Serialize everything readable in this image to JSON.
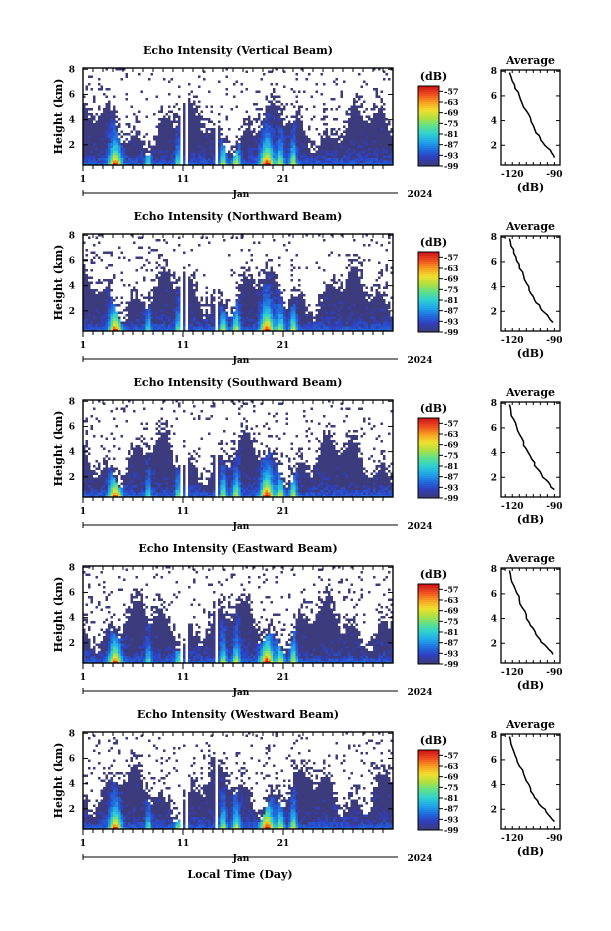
{
  "colors": {
    "background": "#ffffff",
    "low": "#3b3b7e",
    "colormap": [
      "#3b3b7e",
      "#2f3fbf",
      "#1f6fe0",
      "#20a8e8",
      "#2fd0d0",
      "#5ee08a",
      "#b0e040",
      "#f0e030",
      "#f7a020",
      "#ee5020",
      "#d01818"
    ]
  },
  "shared": {
    "ylabel": "Height (km)",
    "x_ticks": [
      "1",
      "11",
      "21"
    ],
    "month_label": "Jan",
    "year_label": "2024",
    "colorbar_unit": "(dB)",
    "colorbar_ticks": [
      "-57",
      "-63",
      "-69",
      "-75",
      "-81",
      "-87",
      "-93",
      "-99"
    ],
    "avg_title": "Average",
    "avg_xlabel": "(dB)",
    "avg_xticks": [
      "-120",
      "-90"
    ],
    "y_ticks": [
      "2",
      "4",
      "6",
      "8"
    ],
    "xlabel_bottom": "Local Time (Day)"
  },
  "chart_data": [
    {
      "type": "heatmap",
      "title": "Echo Intensity (Vertical Beam)",
      "x_range": [
        1,
        32
      ],
      "y_range": [
        0.4,
        8.1
      ],
      "z_range": [
        -99,
        -54
      ],
      "average_profile": {
        "x": [
          -122,
          -120,
          -118,
          -115,
          -113,
          -110,
          -107,
          -105,
          -103,
          -100,
          -98,
          -95,
          -92,
          -90
        ],
        "y": [
          7.9,
          7.2,
          6.6,
          6.0,
          5.4,
          4.8,
          4.2,
          3.6,
          3.0,
          2.6,
          2.2,
          1.8,
          1.4,
          1.0
        ]
      }
    },
    {
      "type": "heatmap",
      "title": "Echo Intensity (Northward Beam)",
      "x_range": [
        1,
        32
      ],
      "y_range": [
        0.4,
        8.1
      ],
      "z_range": [
        -99,
        -54
      ],
      "average_profile": {
        "x": [
          -122,
          -121,
          -119,
          -117,
          -115,
          -112,
          -110,
          -108,
          -105,
          -103,
          -100,
          -97,
          -94,
          -91
        ],
        "y": [
          7.9,
          7.3,
          6.7,
          6.1,
          5.5,
          4.9,
          4.3,
          3.7,
          3.2,
          2.7,
          2.3,
          1.9,
          1.5,
          1.1
        ]
      }
    },
    {
      "type": "heatmap",
      "title": "Echo Intensity (Southward Beam)",
      "x_range": [
        1,
        32
      ],
      "y_range": [
        0.4,
        8.1
      ],
      "z_range": [
        -99,
        -54
      ],
      "average_profile": {
        "x": [
          -122,
          -121,
          -119,
          -117,
          -115,
          -112,
          -110,
          -107,
          -104,
          -102,
          -99,
          -96,
          -93,
          -90
        ],
        "y": [
          7.9,
          7.3,
          6.7,
          6.1,
          5.5,
          4.9,
          4.3,
          3.7,
          3.2,
          2.7,
          2.2,
          1.8,
          1.4,
          1.0
        ]
      }
    },
    {
      "type": "heatmap",
      "title": "Echo Intensity (Eastward Beam)",
      "x_range": [
        1,
        32
      ],
      "y_range": [
        0.4,
        8.1
      ],
      "z_range": [
        -99,
        -54
      ],
      "average_profile": {
        "x": [
          -122,
          -121,
          -119,
          -117,
          -115,
          -113,
          -110,
          -108,
          -105,
          -103,
          -100,
          -97,
          -94,
          -91
        ],
        "y": [
          7.9,
          7.3,
          6.7,
          6.1,
          5.5,
          4.9,
          4.3,
          3.7,
          3.2,
          2.7,
          2.3,
          1.9,
          1.5,
          1.1
        ]
      }
    },
    {
      "type": "heatmap",
      "title": "Echo Intensity (Westward Beam)",
      "x_range": [
        1,
        32
      ],
      "y_range": [
        0.4,
        8.1
      ],
      "z_range": [
        -99,
        -54
      ],
      "average_profile": {
        "x": [
          -122,
          -121,
          -119,
          -117,
          -115,
          -112,
          -110,
          -107,
          -105,
          -102,
          -99,
          -96,
          -93,
          -90
        ],
        "y": [
          7.9,
          7.3,
          6.7,
          6.1,
          5.5,
          4.9,
          4.3,
          3.7,
          3.2,
          2.7,
          2.2,
          1.8,
          1.4,
          1.0
        ]
      }
    }
  ]
}
